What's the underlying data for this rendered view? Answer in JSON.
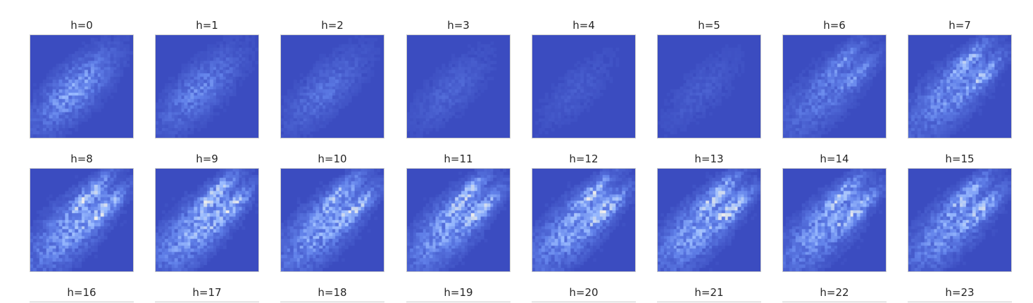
{
  "chart_data": {
    "type": "heatmap",
    "layout": {
      "rows": 3,
      "columns": 8
    },
    "grid": false,
    "colormap": "coolwarm",
    "background_color": "#3b4cc0",
    "frame_color": "#cccccc",
    "panels": [
      {
        "title": "h=0",
        "intensity": 0.55,
        "shape": "single-blob"
      },
      {
        "title": "h=1",
        "intensity": 0.4,
        "shape": "single-blob"
      },
      {
        "title": "h=2",
        "intensity": 0.28,
        "shape": "single-blob"
      },
      {
        "title": "h=3",
        "intensity": 0.18,
        "shape": "single-blob"
      },
      {
        "title": "h=4",
        "intensity": 0.12,
        "shape": "single-blob"
      },
      {
        "title": "h=5",
        "intensity": 0.13,
        "shape": "single-blob"
      },
      {
        "title": "h=6",
        "intensity": 0.45,
        "shape": "two-arms"
      },
      {
        "title": "h=7",
        "intensity": 0.65,
        "shape": "two-arms"
      },
      {
        "title": "h=8",
        "intensity": 0.8,
        "shape": "two-arms"
      },
      {
        "title": "h=9",
        "intensity": 0.85,
        "shape": "two-arms"
      },
      {
        "title": "h=10",
        "intensity": 0.8,
        "shape": "two-arms"
      },
      {
        "title": "h=11",
        "intensity": 0.78,
        "shape": "two-arms"
      },
      {
        "title": "h=12",
        "intensity": 0.8,
        "shape": "two-arms"
      },
      {
        "title": "h=13",
        "intensity": 0.82,
        "shape": "two-arms"
      },
      {
        "title": "h=14",
        "intensity": 0.78,
        "shape": "two-arms"
      },
      {
        "title": "h=15",
        "intensity": 0.72,
        "shape": "two-arms"
      },
      {
        "title": "h=16"
      },
      {
        "title": "h=17"
      },
      {
        "title": "h=18"
      },
      {
        "title": "h=19"
      },
      {
        "title": "h=20"
      },
      {
        "title": "h=21"
      },
      {
        "title": "h=22"
      },
      {
        "title": "h=23"
      }
    ]
  }
}
